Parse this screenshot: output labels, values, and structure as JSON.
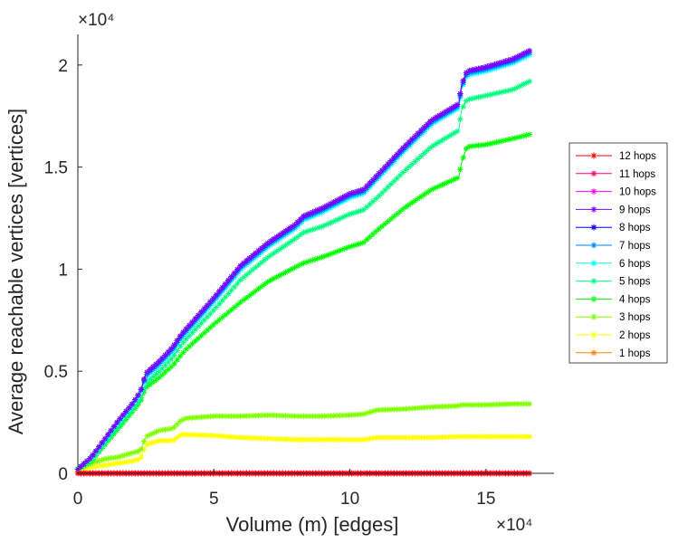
{
  "chart_data": {
    "type": "line",
    "title": "",
    "xlabel": "Volume (m) [edges]",
    "ylabel": "Average reachable vertices [vertices]",
    "x_exponent": "×10⁴",
    "y_exponent": "×10⁴",
    "xlim": [
      0,
      17.5
    ],
    "ylim": [
      0,
      2.15
    ],
    "x_ticks": [
      0,
      5,
      10,
      15
    ],
    "x_tick_labels": [
      "0",
      "5",
      "10",
      "15"
    ],
    "y_ticks": [
      0,
      0.5,
      1,
      1.5,
      2
    ],
    "y_tick_labels": [
      "0",
      "0.5",
      "1",
      "1.5",
      "2"
    ],
    "grid": false,
    "legend_position": "right",
    "x": [
      0,
      0.5,
      1,
      1.5,
      2,
      2.3,
      2.5,
      3,
      3.5,
      3.8,
      4,
      5,
      6,
      7,
      8,
      8.3,
      9,
      10,
      10.5,
      11,
      12,
      13,
      14,
      14.1,
      14.3,
      15,
      16,
      16.6
    ],
    "series": [
      {
        "name": "12 hops",
        "color": "#ff0000",
        "values": [
          0,
          0,
          0,
          0,
          0,
          0,
          0,
          0,
          0,
          0,
          0,
          0,
          0,
          0,
          0,
          0,
          0,
          0,
          0,
          0,
          0,
          0,
          0,
          0,
          0,
          0,
          0,
          0
        ]
      },
      {
        "name": "11 hops",
        "color": "#ff0080",
        "values": [
          0,
          0,
          0,
          0,
          0,
          0,
          0,
          0,
          0,
          0,
          0,
          0,
          0,
          0,
          0,
          0,
          0,
          0,
          0,
          0,
          0,
          0,
          0,
          0,
          0,
          0,
          0,
          0
        ]
      },
      {
        "name": "10 hops",
        "color": "#ff00ff",
        "values": [
          0,
          0,
          0,
          0,
          0,
          0,
          0,
          0,
          0,
          0,
          0,
          0,
          0,
          0,
          0,
          0,
          0,
          0,
          0,
          0,
          0,
          0,
          0,
          0,
          0,
          0,
          0,
          0
        ]
      },
      {
        "name": "9 hops",
        "color": "#8000ff",
        "values": [
          0.02,
          0.08,
          0.17,
          0.26,
          0.34,
          0.4,
          0.49,
          0.55,
          0.62,
          0.68,
          0.71,
          0.86,
          1.02,
          1.13,
          1.22,
          1.26,
          1.3,
          1.37,
          1.39,
          1.46,
          1.6,
          1.73,
          1.81,
          1.9,
          1.97,
          1.99,
          2.03,
          2.07
        ]
      },
      {
        "name": "8 hops",
        "color": "#0000ff",
        "values": [
          0.02,
          0.08,
          0.17,
          0.26,
          0.34,
          0.4,
          0.49,
          0.55,
          0.62,
          0.68,
          0.71,
          0.86,
          1.02,
          1.13,
          1.22,
          1.26,
          1.3,
          1.37,
          1.39,
          1.46,
          1.6,
          1.73,
          1.81,
          1.9,
          1.97,
          1.99,
          2.03,
          2.07
        ]
      },
      {
        "name": "7 hops",
        "color": "#0080ff",
        "values": [
          0.02,
          0.08,
          0.17,
          0.26,
          0.34,
          0.4,
          0.48,
          0.54,
          0.61,
          0.67,
          0.7,
          0.85,
          1.01,
          1.12,
          1.21,
          1.25,
          1.29,
          1.36,
          1.38,
          1.45,
          1.59,
          1.72,
          1.8,
          1.89,
          1.96,
          1.98,
          2.02,
          2.06
        ]
      },
      {
        "name": "6 hops",
        "color": "#00ffff",
        "values": [
          0.02,
          0.07,
          0.16,
          0.25,
          0.33,
          0.39,
          0.47,
          0.53,
          0.6,
          0.66,
          0.69,
          0.84,
          1.0,
          1.11,
          1.2,
          1.24,
          1.28,
          1.35,
          1.37,
          1.44,
          1.58,
          1.71,
          1.79,
          1.88,
          1.95,
          1.97,
          2.01,
          2.05
        ]
      },
      {
        "name": "5 hops",
        "color": "#00ff80",
        "values": [
          0.02,
          0.07,
          0.15,
          0.23,
          0.31,
          0.36,
          0.44,
          0.5,
          0.57,
          0.63,
          0.66,
          0.8,
          0.95,
          1.06,
          1.15,
          1.18,
          1.21,
          1.27,
          1.29,
          1.35,
          1.48,
          1.6,
          1.68,
          1.78,
          1.83,
          1.85,
          1.88,
          1.92
        ]
      },
      {
        "name": "4 hops",
        "color": "#00ff00",
        "values": [
          0.02,
          0.06,
          0.14,
          0.22,
          0.3,
          0.35,
          0.42,
          0.47,
          0.53,
          0.58,
          0.61,
          0.73,
          0.84,
          0.94,
          1.01,
          1.03,
          1.06,
          1.11,
          1.13,
          1.19,
          1.3,
          1.39,
          1.45,
          1.52,
          1.6,
          1.61,
          1.64,
          1.66
        ]
      },
      {
        "name": "3 hops",
        "color": "#80ff00",
        "values": [
          0.02,
          0.05,
          0.07,
          0.08,
          0.1,
          0.11,
          0.18,
          0.21,
          0.22,
          0.26,
          0.27,
          0.28,
          0.28,
          0.285,
          0.28,
          0.28,
          0.28,
          0.285,
          0.29,
          0.31,
          0.315,
          0.325,
          0.33,
          0.335,
          0.335,
          0.335,
          0.34,
          0.34
        ]
      },
      {
        "name": "2 hops",
        "color": "#ffff00",
        "values": [
          0.01,
          0.03,
          0.04,
          0.05,
          0.06,
          0.07,
          0.14,
          0.16,
          0.16,
          0.19,
          0.19,
          0.185,
          0.175,
          0.17,
          0.165,
          0.165,
          0.165,
          0.165,
          0.165,
          0.175,
          0.175,
          0.175,
          0.18,
          0.18,
          0.18,
          0.18,
          0.18,
          0.18
        ]
      },
      {
        "name": "1 hops",
        "color": "#ff8000",
        "values": [
          0,
          0,
          0,
          0,
          0,
          0,
          0,
          0,
          0,
          0,
          0,
          0,
          0,
          0,
          0,
          0,
          0,
          0,
          0,
          0,
          0,
          0,
          0,
          0,
          0,
          0,
          0,
          0
        ]
      }
    ]
  }
}
